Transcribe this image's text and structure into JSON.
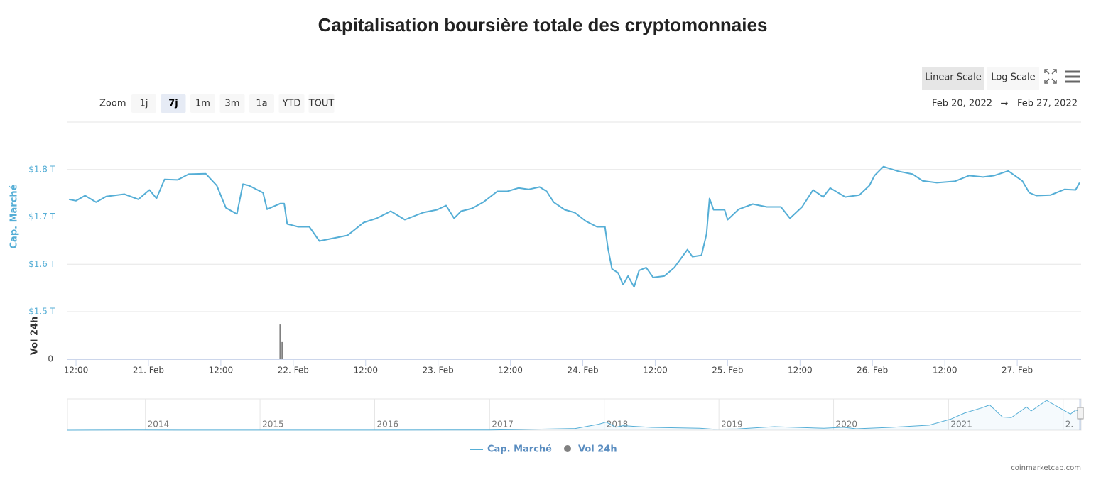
{
  "chart_data": {
    "type": "line",
    "title": "Capitalisation boursière totale des cryptomonnaies",
    "range_selector": {
      "label": "Zoom",
      "buttons": [
        "1j",
        "7j",
        "1m",
        "3m",
        "1a",
        "YTD",
        "TOUT"
      ],
      "selected": 1,
      "from": "Feb 20, 2022",
      "separator": "→",
      "to": "Feb 27, 2022"
    },
    "scale_buttons": [
      "Linear Scale",
      "Log Scale"
    ],
    "scale_selected": 0,
    "y_label": "Cap. Marché",
    "y2_label": "Vol 24h",
    "xlim": [
      "2022-02-20T10:35",
      "2022-02-27T10:35"
    ],
    "xticks": [
      {
        "value": "2022-02-20T12:00",
        "label": "12:00"
      },
      {
        "value": "2022-02-21T00:00",
        "label": "21. Feb"
      },
      {
        "value": "2022-02-21T12:00",
        "label": "12:00"
      },
      {
        "value": "2022-02-22T00:00",
        "label": "22. Feb"
      },
      {
        "value": "2022-02-22T12:00",
        "label": "12:00"
      },
      {
        "value": "2022-02-23T00:00",
        "label": "23. Feb"
      },
      {
        "value": "2022-02-23T12:00",
        "label": "12:00"
      },
      {
        "value": "2022-02-24T00:00",
        "label": "24. Feb"
      },
      {
        "value": "2022-02-24T12:00",
        "label": "12:00"
      },
      {
        "value": "2022-02-25T00:00",
        "label": "25. Feb"
      },
      {
        "value": "2022-02-25T12:00",
        "label": "12:00"
      },
      {
        "value": "2022-02-26T00:00",
        "label": "26. Feb"
      },
      {
        "value": "2022-02-26T12:00",
        "label": "12:00"
      },
      {
        "value": "2022-02-27T00:00",
        "label": "27. Feb"
      }
    ],
    "ylim": [
      1.5,
      1.9
    ],
    "yticks": [
      {
        "value": 1.5,
        "label": "$1.5 T"
      },
      {
        "value": 1.6,
        "label": "$1.6 T"
      },
      {
        "value": 1.7,
        "label": "$1.7 T"
      },
      {
        "value": 1.8,
        "label": "$1.8 T"
      }
    ],
    "y2lim": [
      0,
      100
    ],
    "y2ticks": [
      0
    ],
    "grid": true,
    "series": [
      {
        "name": "Cap. Marché",
        "color": "#55aed6",
        "x": [
          "2022-02-20T10:50",
          "2022-02-20T12:00",
          "2022-02-20T13:30",
          "2022-02-20T15:20",
          "2022-02-20T17:00",
          "2022-02-20T20:00",
          "2022-02-20T22:20",
          "2022-02-21T00:10",
          "2022-02-21T01:20",
          "2022-02-21T02:40",
          "2022-02-21T04:50",
          "2022-02-21T06:40",
          "2022-02-21T09:30",
          "2022-02-21T11:20",
          "2022-02-21T12:50",
          "2022-02-21T14:40",
          "2022-02-21T15:40",
          "2022-02-21T16:40",
          "2022-02-21T19:00",
          "2022-02-21T19:40",
          "2022-02-21T21:50",
          "2022-02-21T22:30",
          "2022-02-21T23:00",
          "2022-02-22T00:50",
          "2022-02-22T02:40",
          "2022-02-22T04:20",
          "2022-02-22T06:40",
          "2022-02-22T09:00",
          "2022-02-22T11:40",
          "2022-02-22T13:50",
          "2022-02-22T16:10",
          "2022-02-22T18:30",
          "2022-02-22T21:30",
          "2022-02-22T23:50",
          "2022-02-23T01:20",
          "2022-02-23T02:40",
          "2022-02-23T03:50",
          "2022-02-23T05:40",
          "2022-02-23T07:30",
          "2022-02-23T09:50",
          "2022-02-23T11:30",
          "2022-02-23T13:20",
          "2022-02-23T15:00",
          "2022-02-23T16:50",
          "2022-02-23T18:00",
          "2022-02-23T19:10",
          "2022-02-23T21:00",
          "2022-02-23T22:40",
          "2022-02-24T00:30",
          "2022-02-24T02:20",
          "2022-02-24T03:40",
          "2022-02-24T04:10",
          "2022-02-24T04:50",
          "2022-02-24T05:50",
          "2022-02-24T06:40",
          "2022-02-24T07:30",
          "2022-02-24T08:30",
          "2022-02-24T09:20",
          "2022-02-24T10:30",
          "2022-02-24T11:40",
          "2022-02-24T13:30",
          "2022-02-24T15:10",
          "2022-02-24T17:20",
          "2022-02-24T18:10",
          "2022-02-24T19:40",
          "2022-02-24T20:30",
          "2022-02-24T21:00",
          "2022-02-24T21:40",
          "2022-02-24T23:30",
          "2022-02-25T00:00",
          "2022-02-25T01:50",
          "2022-02-25T04:10",
          "2022-02-25T06:30",
          "2022-02-25T08:50",
          "2022-02-25T10:20",
          "2022-02-25T12:20",
          "2022-02-25T14:10",
          "2022-02-25T15:50",
          "2022-02-25T17:00",
          "2022-02-25T19:30",
          "2022-02-25T21:50",
          "2022-02-25T23:30",
          "2022-02-26T00:20",
          "2022-02-26T01:50",
          "2022-02-26T04:20",
          "2022-02-26T06:40",
          "2022-02-26T08:20",
          "2022-02-26T10:40",
          "2022-02-26T13:40",
          "2022-02-26T16:00",
          "2022-02-26T18:20",
          "2022-02-26T20:10",
          "2022-02-26T22:30",
          "2022-02-27T00:50",
          "2022-02-27T02:00",
          "2022-02-27T03:10",
          "2022-02-27T05:30",
          "2022-02-27T07:50",
          "2022-02-27T09:40",
          "2022-02-27T10:20"
        ],
        "values": [
          1.737,
          1.734,
          1.745,
          1.731,
          1.743,
          1.748,
          1.737,
          1.757,
          1.739,
          1.779,
          1.778,
          1.79,
          1.791,
          1.766,
          1.719,
          1.706,
          1.769,
          1.766,
          1.751,
          1.716,
          1.728,
          1.728,
          1.685,
          1.679,
          1.679,
          1.649,
          1.655,
          1.661,
          1.688,
          1.697,
          1.712,
          1.694,
          1.709,
          1.715,
          1.724,
          1.697,
          1.712,
          1.718,
          1.731,
          1.754,
          1.754,
          1.761,
          1.758,
          1.763,
          1.754,
          1.731,
          1.715,
          1.709,
          1.691,
          1.679,
          1.679,
          1.634,
          1.59,
          1.582,
          1.557,
          1.575,
          1.552,
          1.587,
          1.593,
          1.572,
          1.575,
          1.593,
          1.631,
          1.616,
          1.619,
          1.664,
          1.739,
          1.715,
          1.715,
          1.694,
          1.716,
          1.727,
          1.721,
          1.721,
          1.697,
          1.721,
          1.757,
          1.742,
          1.761,
          1.742,
          1.746,
          1.766,
          1.787,
          1.806,
          1.796,
          1.79,
          1.776,
          1.772,
          1.775,
          1.787,
          1.784,
          1.787,
          1.797,
          1.776,
          1.751,
          1.745,
          1.746,
          1.758,
          1.757,
          1.772
        ]
      },
      {
        "name": "Vol 24h",
        "color": "#808080",
        "axis": "y2",
        "x": [
          "2022-02-21T21:50",
          "2022-02-21T22:10"
        ],
        "values": [
          73,
          36
        ]
      }
    ],
    "navigator": {
      "xlim": [
        "2013-04-28",
        "2022-02-27"
      ],
      "ylim": [
        0,
        3.1
      ],
      "xticks": [
        {
          "value": "2014-01-01",
          "label": "2014"
        },
        {
          "value": "2015-01-01",
          "label": "2015"
        },
        {
          "value": "2016-01-01",
          "label": "2016"
        },
        {
          "value": "2017-01-01",
          "label": "2017"
        },
        {
          "value": "2018-01-01",
          "label": "2018"
        },
        {
          "value": "2019-01-01",
          "label": "2019"
        },
        {
          "value": "2020-01-01",
          "label": "2020"
        },
        {
          "value": "2021-01-01",
          "label": "2021"
        },
        {
          "value": "2022-01-01",
          "label": "2."
        }
      ],
      "x": [
        "2013-04-28",
        "2013-12-01",
        "2014-06-01",
        "2015-01-15",
        "2016-01-01",
        "2017-01-01",
        "2017-06-01",
        "2017-10-01",
        "2017-12-15",
        "2018-01-07",
        "2018-02-06",
        "2018-03-01",
        "2018-06-01",
        "2018-11-01",
        "2018-12-15",
        "2019-03-01",
        "2019-06-26",
        "2019-12-01",
        "2020-02-01",
        "2020-03-13",
        "2020-07-01",
        "2020-11-01",
        "2021-01-08",
        "2021-02-21",
        "2021-04-15",
        "2021-05-12",
        "2021-06-22",
        "2021-07-20",
        "2021-09-06",
        "2021-09-21",
        "2021-11-09",
        "2022-01-24",
        "2022-02-10",
        "2022-02-27"
      ],
      "values": [
        0.0015,
        0.015,
        0.01,
        0.005,
        0.008,
        0.018,
        0.1,
        0.17,
        0.6,
        0.81,
        0.3,
        0.45,
        0.28,
        0.2,
        0.1,
        0.13,
        0.35,
        0.19,
        0.29,
        0.14,
        0.28,
        0.5,
        1.1,
        1.7,
        2.2,
        2.5,
        1.3,
        1.25,
        2.3,
        1.9,
        2.95,
        1.6,
        2.0,
        1.77
      ]
    },
    "credit": "coinmarketcap.com"
  }
}
